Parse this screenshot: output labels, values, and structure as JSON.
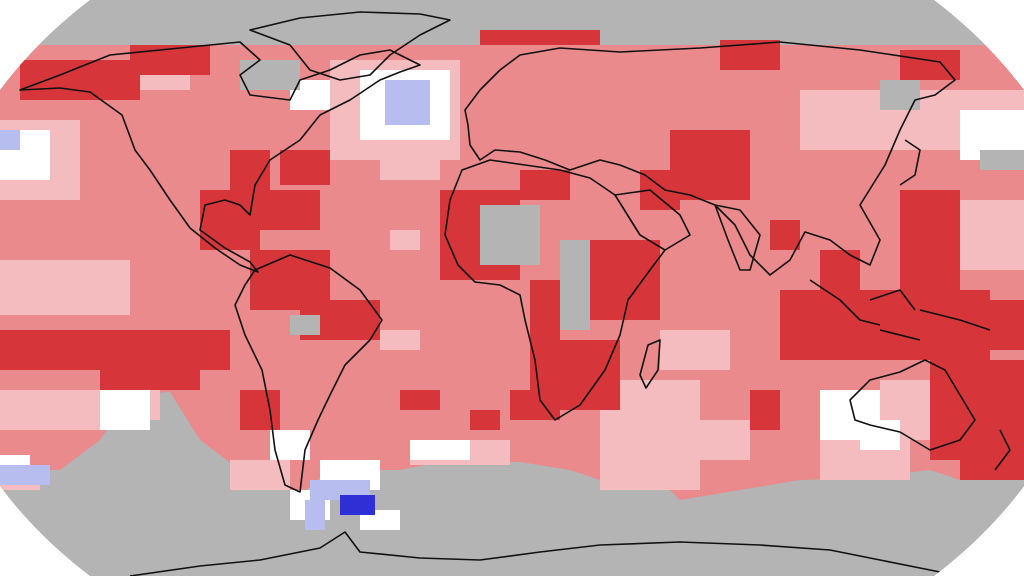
{
  "map": {
    "projection": "robinson",
    "colors": {
      "background": "#ffffff",
      "no_data": "#b4b4b4",
      "much_warmer": "#d6363a",
      "warmer": "#ea8a8c",
      "slightly_warmer": "#f5bcbf",
      "near_average": "#ffffff",
      "cooler": "#b8bdf0",
      "much_cooler": "#2f2fd6",
      "coastline": "#111111"
    }
  }
}
